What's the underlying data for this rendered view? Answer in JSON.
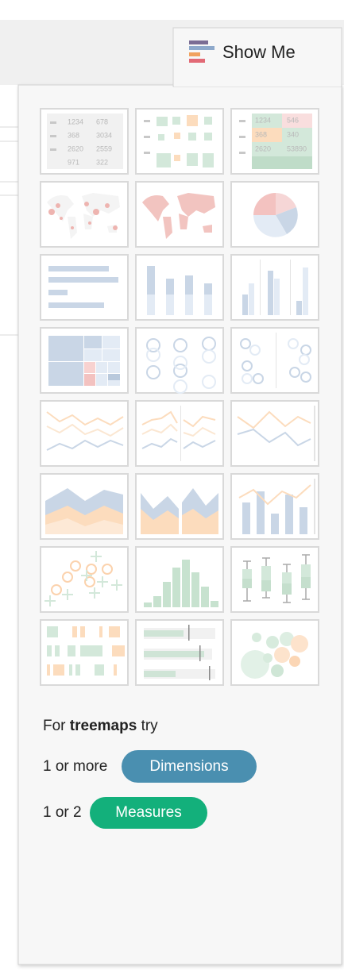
{
  "tab": {
    "label": "Show Me"
  },
  "thumbnails": {
    "text_table": [
      "1234",
      "678",
      "368",
      "3034",
      "2620",
      "2559",
      "971",
      "322"
    ],
    "highlight_table": [
      "1234",
      "546",
      "368",
      "340",
      "2620",
      "53890"
    ]
  },
  "hint": {
    "prefix": "For",
    "chart": "treemaps",
    "suffix": "try"
  },
  "requirements": [
    {
      "count": "1 or more",
      "field": "Dimensions"
    },
    {
      "count": "1 or 2",
      "field": "Measures"
    }
  ]
}
